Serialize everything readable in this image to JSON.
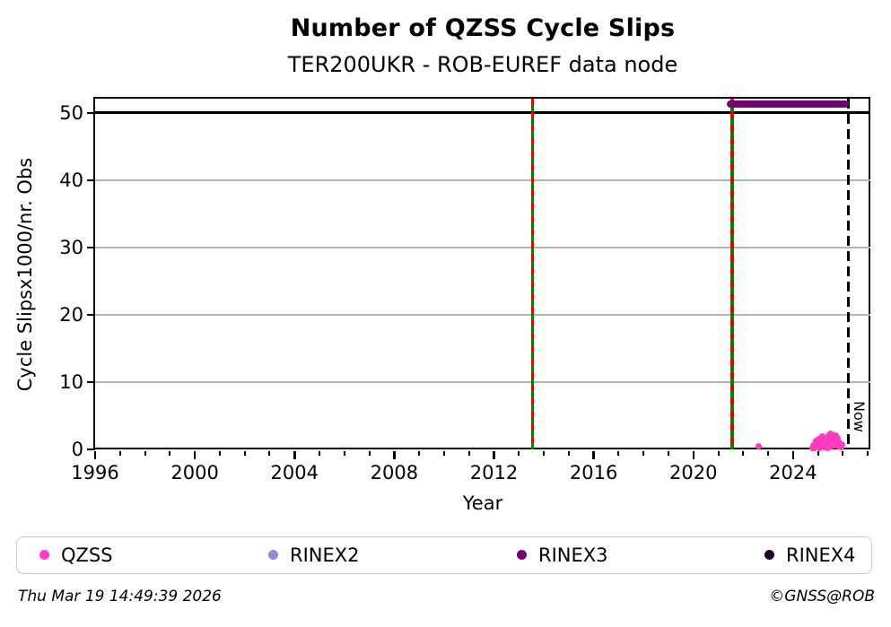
{
  "header": {
    "title": "Number of QZSS Cycle Slips",
    "subtitle": "TER200UKR - ROB-EUREF data node"
  },
  "footer": {
    "timestamp": "Thu Mar 19 14:49:39 2026",
    "credit": "©GNSS@ROB"
  },
  "legend": {
    "items": [
      {
        "label": "QZSS",
        "color": "#ff3dbe"
      },
      {
        "label": "RINEX2",
        "color": "#8d8dd4"
      },
      {
        "label": "RINEX3",
        "color": "#730573"
      },
      {
        "label": "RINEX4",
        "color": "#260126"
      }
    ]
  },
  "chart_data": {
    "type": "scatter",
    "title": "Number of QZSS Cycle Slips",
    "subtitle": "TER200UKR - ROB-EUREF data node",
    "xlabel": "Year",
    "ylabel": "Cycle Slipsx1000/nr. Obs",
    "xlim": [
      1996,
      2027.1
    ],
    "ylim": [
      0,
      52.13
    ],
    "x_major_ticks": [
      1996,
      2000,
      2004,
      2008,
      2012,
      2016,
      2020,
      2024
    ],
    "x_minor_tick_step": 1,
    "y_major_ticks": [
      0,
      10,
      20,
      30,
      40,
      50
    ],
    "grid": {
      "y_gray_lines": [
        10,
        20,
        30,
        40
      ],
      "y_black_lines": [
        50
      ],
      "gray_color": "#b4b4b4"
    },
    "event_lines": {
      "years": [
        2013.55,
        2021.56
      ],
      "solid_color": "#008000",
      "dash_color": "#e60000"
    },
    "now_line": {
      "year": 2026.21,
      "label": "Now",
      "color": "#000000",
      "style": "dashed"
    },
    "availability_bars": [
      {
        "name": "RINEX3",
        "start": 2021.5,
        "end": 2026.1,
        "value": 51.3,
        "color": "#730573"
      }
    ],
    "series": [
      {
        "name": "QZSS",
        "color": "#ff3dbe",
        "marker_size": 7,
        "points": [
          [
            2022.62,
            0.4
          ],
          [
            2024.79,
            0.25
          ],
          [
            2024.82,
            0.55
          ],
          [
            2024.85,
            0.15
          ],
          [
            2024.88,
            0.9
          ],
          [
            2024.91,
            0.45
          ],
          [
            2024.94,
            1.2
          ],
          [
            2024.97,
            0.3
          ],
          [
            2025.0,
            0.7
          ],
          [
            2025.02,
            1.5
          ],
          [
            2025.05,
            0.2
          ],
          [
            2025.08,
            1.0
          ],
          [
            2025.1,
            1.7
          ],
          [
            2025.13,
            0.5
          ],
          [
            2025.16,
            1.3
          ],
          [
            2025.19,
            1.9
          ],
          [
            2025.21,
            0.8
          ],
          [
            2025.24,
            0.3
          ],
          [
            2025.27,
            1.6
          ],
          [
            2025.3,
            1.1
          ],
          [
            2025.33,
            0.6
          ],
          [
            2025.36,
            1.4
          ],
          [
            2025.38,
            0.2
          ],
          [
            2025.41,
            2.0
          ],
          [
            2025.44,
            0.9
          ],
          [
            2025.47,
            1.55
          ],
          [
            2025.5,
            2.3
          ],
          [
            2025.52,
            0.4
          ],
          [
            2025.55,
            1.8
          ],
          [
            2025.58,
            2.15
          ],
          [
            2025.6,
            1.0
          ],
          [
            2025.63,
            0.6
          ],
          [
            2025.66,
            1.85
          ],
          [
            2025.69,
            1.35
          ],
          [
            2025.71,
            2.05
          ],
          [
            2025.74,
            0.75
          ],
          [
            2025.77,
            1.6
          ],
          [
            2025.8,
            1.15
          ],
          [
            2025.83,
            0.45
          ],
          [
            2025.86,
            0.95
          ],
          [
            2025.89,
            0.6
          ],
          [
            2025.92,
            0.3
          ],
          [
            2025.95,
            0.75
          ]
        ]
      }
    ],
    "legend_entries": [
      "QZSS",
      "RINEX2",
      "RINEX3",
      "RINEX4"
    ]
  }
}
